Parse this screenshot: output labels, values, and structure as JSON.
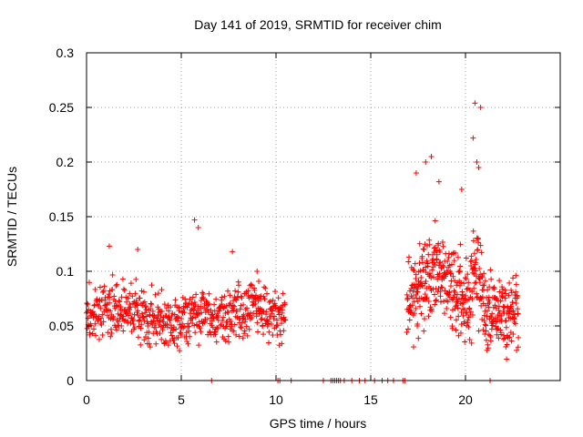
{
  "chart_data": {
    "type": "scatter",
    "title": "Day 141 of 2019, SRMTID for receiver chim",
    "xlabel": "GPS time / hours",
    "ylabel": "SRMTID / TECUs",
    "xlim": [
      0,
      25
    ],
    "ylim": [
      0,
      0.3
    ],
    "x_ticks": [
      0,
      5,
      10,
      15,
      20
    ],
    "x_tick_labels": [
      "0",
      "5",
      "10",
      "15",
      "20"
    ],
    "y_ticks": [
      0,
      0.05,
      0.1,
      0.15,
      0.2,
      0.25,
      0.3
    ],
    "y_tick_labels": [
      "0",
      "0.05",
      "0.1",
      "0.15",
      "0.2",
      "0.25",
      "0.3"
    ],
    "grid": true,
    "marker": "+",
    "color": "#ff0000",
    "series": [
      {
        "name": "SRMTID",
        "segments": [
          {
            "x_start": 0.0,
            "x_end": 10.5,
            "baseline": 0.058,
            "spread": 0.02,
            "step": 0.016,
            "seed": 3
          },
          {
            "x_start": 16.9,
            "x_end": 22.8,
            "baseline": 0.085,
            "spread": 0.03,
            "step": 0.012,
            "seed": 11
          }
        ],
        "notable_points": [
          {
            "x": 1.2,
            "y": 0.123
          },
          {
            "x": 2.7,
            "y": 0.12
          },
          {
            "x": 5.7,
            "y": 0.147
          },
          {
            "x": 5.9,
            "y": 0.14
          },
          {
            "x": 7.7,
            "y": 0.118
          },
          {
            "x": 9.0,
            "y": 0.1
          },
          {
            "x": 17.4,
            "y": 0.19
          },
          {
            "x": 17.9,
            "y": 0.2
          },
          {
            "x": 18.2,
            "y": 0.205
          },
          {
            "x": 18.6,
            "y": 0.182
          },
          {
            "x": 19.8,
            "y": 0.175
          },
          {
            "x": 20.4,
            "y": 0.222
          },
          {
            "x": 20.5,
            "y": 0.254
          },
          {
            "x": 20.8,
            "y": 0.25
          },
          {
            "x": 20.6,
            "y": 0.2
          },
          {
            "x": 20.7,
            "y": 0.195
          }
        ],
        "zero_points_x": [
          6.6,
          10.1,
          10.2,
          10.8,
          12.5,
          12.9,
          13.0,
          13.1,
          13.2,
          13.3,
          13.4,
          13.6,
          14.0,
          14.4,
          14.7,
          15.2,
          15.6,
          15.9,
          16.2,
          16.7,
          16.8,
          21.3
        ]
      }
    ]
  }
}
